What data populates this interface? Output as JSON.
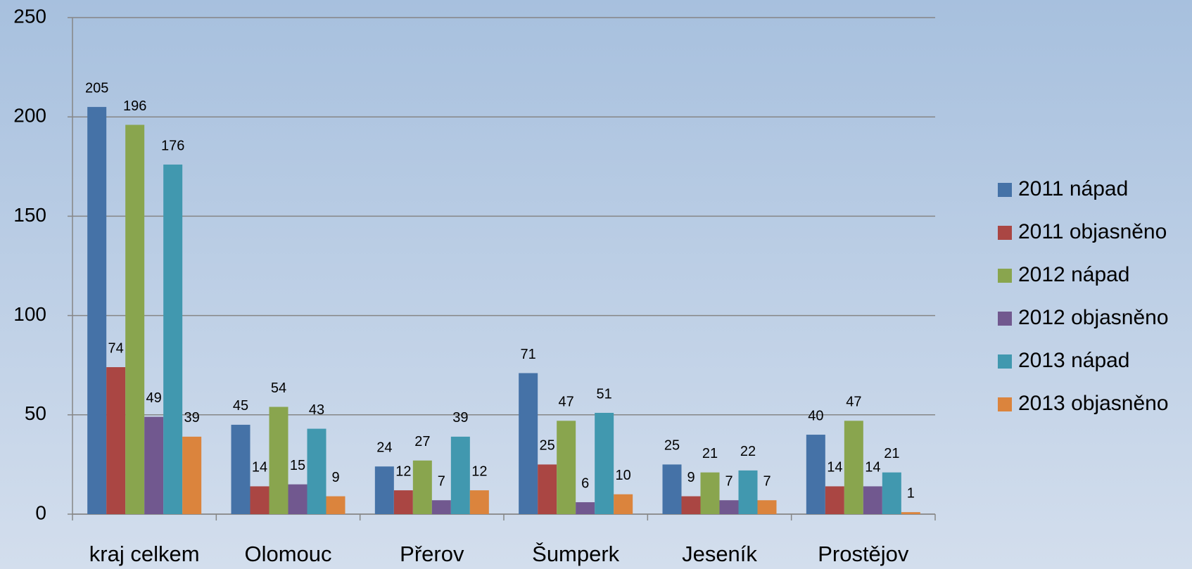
{
  "chart_data": {
    "type": "bar",
    "categories": [
      "kraj celkem",
      "Olomouc",
      "Přerov",
      "Šumperk",
      "Jeseník",
      "Prostějov"
    ],
    "series": [
      {
        "name": "2011 nápad",
        "color": "#4572a7",
        "values": [
          205,
          45,
          24,
          71,
          25,
          40
        ]
      },
      {
        "name": "2011 objasněno",
        "color": "#aa4643",
        "values": [
          74,
          14,
          12,
          25,
          9,
          14
        ]
      },
      {
        "name": "2012 nápad",
        "color": "#89a54e",
        "values": [
          196,
          54,
          27,
          47,
          21,
          47
        ]
      },
      {
        "name": "2012 objasněno",
        "color": "#71588f",
        "values": [
          49,
          15,
          7,
          6,
          7,
          14
        ]
      },
      {
        "name": "2013 nápad",
        "color": "#4198af",
        "values": [
          176,
          43,
          39,
          51,
          22,
          21
        ]
      },
      {
        "name": "2013 objasněno",
        "color": "#db843d",
        "values": [
          39,
          9,
          12,
          10,
          7,
          1
        ]
      }
    ],
    "ylim": [
      0,
      250
    ],
    "yticks": [
      0,
      50,
      100,
      150,
      200,
      250
    ],
    "grid": true,
    "legend": "right"
  }
}
